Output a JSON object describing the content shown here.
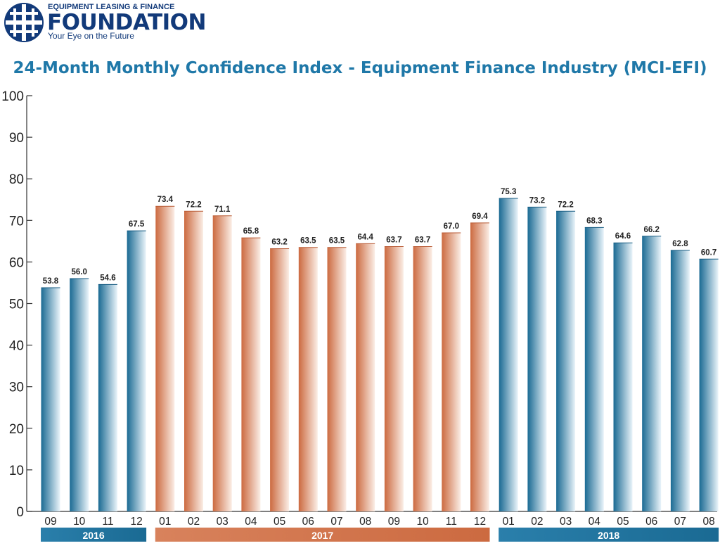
{
  "logo": {
    "top_line": "EQUIPMENT LEASING & FINANCE",
    "name": "FOUNDATION",
    "tagline": "Your Eye on the Future",
    "icon": "globe-icon"
  },
  "colors": {
    "blue_dark": "#1a6a93",
    "blue_light": "#eaf4fa",
    "orange_dark": "#cc6a40",
    "orange_light": "#fbeee6",
    "title": "#1f78a8",
    "axis": "#333333"
  },
  "chart_data": {
    "type": "bar",
    "title": "24-Month Monthly Confidence Index - Equipment Finance Industry (MCI-EFI)",
    "xlabel": "",
    "ylabel": "",
    "ylim": [
      0,
      100
    ],
    "yticks": [
      0,
      10,
      20,
      30,
      40,
      50,
      60,
      70,
      80,
      90,
      100
    ],
    "categories": [
      "09",
      "10",
      "11",
      "12",
      "01",
      "02",
      "03",
      "04",
      "05",
      "06",
      "07",
      "08",
      "09",
      "10",
      "11",
      "12",
      "01",
      "02",
      "03",
      "04",
      "05",
      "06",
      "07",
      "08"
    ],
    "values": [
      53.8,
      56.0,
      54.6,
      67.5,
      73.4,
      72.2,
      71.1,
      65.8,
      63.2,
      63.5,
      63.5,
      64.4,
      63.7,
      63.7,
      67.0,
      69.4,
      75.3,
      73.2,
      72.2,
      68.3,
      64.6,
      66.2,
      62.8,
      60.7
    ],
    "value_labels": [
      "53.8",
      "56.0",
      "54.6",
      "67.5",
      "73.4",
      "72.2",
      "71.1",
      "65.8",
      "63.2",
      "63.5",
      "63.5",
      "64.4",
      "63.7",
      "63.7",
      "67.0",
      "69.4",
      "75.3",
      "73.2",
      "72.2",
      "68.3",
      "64.6",
      "66.2",
      "62.8",
      "60.7"
    ],
    "year_groups": [
      {
        "label": "2016",
        "start": 0,
        "end": 3,
        "color": "blue"
      },
      {
        "label": "2017",
        "start": 4,
        "end": 15,
        "color": "orange"
      },
      {
        "label": "2018",
        "start": 16,
        "end": 23,
        "color": "blue"
      }
    ],
    "grid": false,
    "legend": "none"
  }
}
